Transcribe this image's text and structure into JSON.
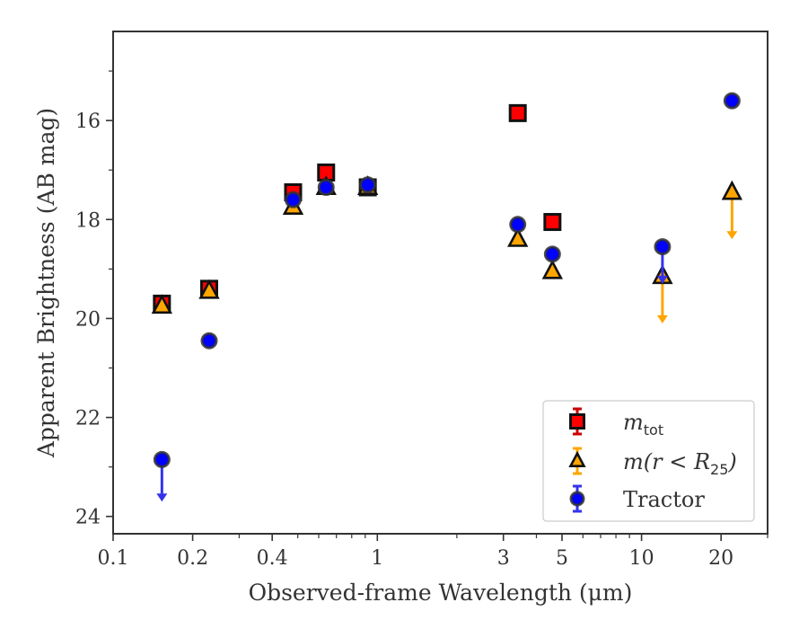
{
  "chart_data": {
    "type": "scatter",
    "xlabel": "Observed-frame Wavelength (μm)",
    "ylabel": "Apparent Brightness (AB mag)",
    "x_scale": "log",
    "xlim": [
      0.1,
      30
    ],
    "ylim": [
      24.35,
      14.2
    ],
    "y_inverted": true,
    "x_ticks": [
      0.1,
      0.2,
      0.4,
      1,
      3,
      5,
      10,
      20
    ],
    "x_tick_labels": [
      "0.1",
      "0.2",
      "0.4",
      "1",
      "3",
      "5",
      "10",
      "20"
    ],
    "y_ticks": [
      16,
      18,
      20,
      22,
      24
    ],
    "y_tick_labels": [
      "16",
      "18",
      "20",
      "22",
      "24"
    ],
    "grid": false,
    "legend_position": "lower-right",
    "series": [
      {
        "name": "m_tot",
        "marker": "square",
        "color": "#ff0000",
        "errorbar_color": "#cc0000",
        "points": [
          {
            "x": 0.153,
            "y": 19.7
          },
          {
            "x": 0.231,
            "y": 19.4
          },
          {
            "x": 0.48,
            "y": 17.45
          },
          {
            "x": 0.64,
            "y": 17.05
          },
          {
            "x": 0.92,
            "y": 17.35
          },
          {
            "x": 3.4,
            "y": 15.85
          },
          {
            "x": 4.6,
            "y": 18.05
          }
        ]
      },
      {
        "name": "m(r<R25)",
        "marker": "triangle",
        "color": "#ffa500",
        "errorbar_color": "#ffa500",
        "points": [
          {
            "x": 0.153,
            "y": 19.75
          },
          {
            "x": 0.231,
            "y": 19.45
          },
          {
            "x": 0.48,
            "y": 17.75
          },
          {
            "x": 0.64,
            "y": 17.35
          },
          {
            "x": 0.92,
            "y": 17.35
          },
          {
            "x": 3.4,
            "y": 18.4
          },
          {
            "x": 4.6,
            "y": 19.05
          },
          {
            "x": 12.0,
            "y": 19.15,
            "upper_limit": true,
            "limit_to": 20.1
          },
          {
            "x": 22.0,
            "y": 17.45,
            "upper_limit": true,
            "limit_to": 18.4
          }
        ]
      },
      {
        "name": "Tractor",
        "marker": "circle",
        "color": "#0000ff",
        "errorbar_color": "#3333ee",
        "points": [
          {
            "x": 0.153,
            "y": 22.85,
            "upper_limit": true,
            "limit_to": 23.7
          },
          {
            "x": 0.231,
            "y": 20.45
          },
          {
            "x": 0.48,
            "y": 17.6
          },
          {
            "x": 0.64,
            "y": 17.35
          },
          {
            "x": 0.92,
            "y": 17.3
          },
          {
            "x": 3.4,
            "y": 18.1
          },
          {
            "x": 4.6,
            "y": 18.7
          },
          {
            "x": 12.0,
            "y": 18.55,
            "upper_limit": true,
            "limit_to": 19.3
          },
          {
            "x": 22.0,
            "y": 15.6
          }
        ]
      }
    ],
    "legend": {
      "entries": [
        {
          "label_main": "m",
          "label_sub": "tot",
          "series": 0
        },
        {
          "label_main": "m(r < R",
          "label_sub": "25",
          "label_tail": ")",
          "series": 1
        },
        {
          "label_main": "Tractor",
          "series": 2
        }
      ]
    }
  }
}
